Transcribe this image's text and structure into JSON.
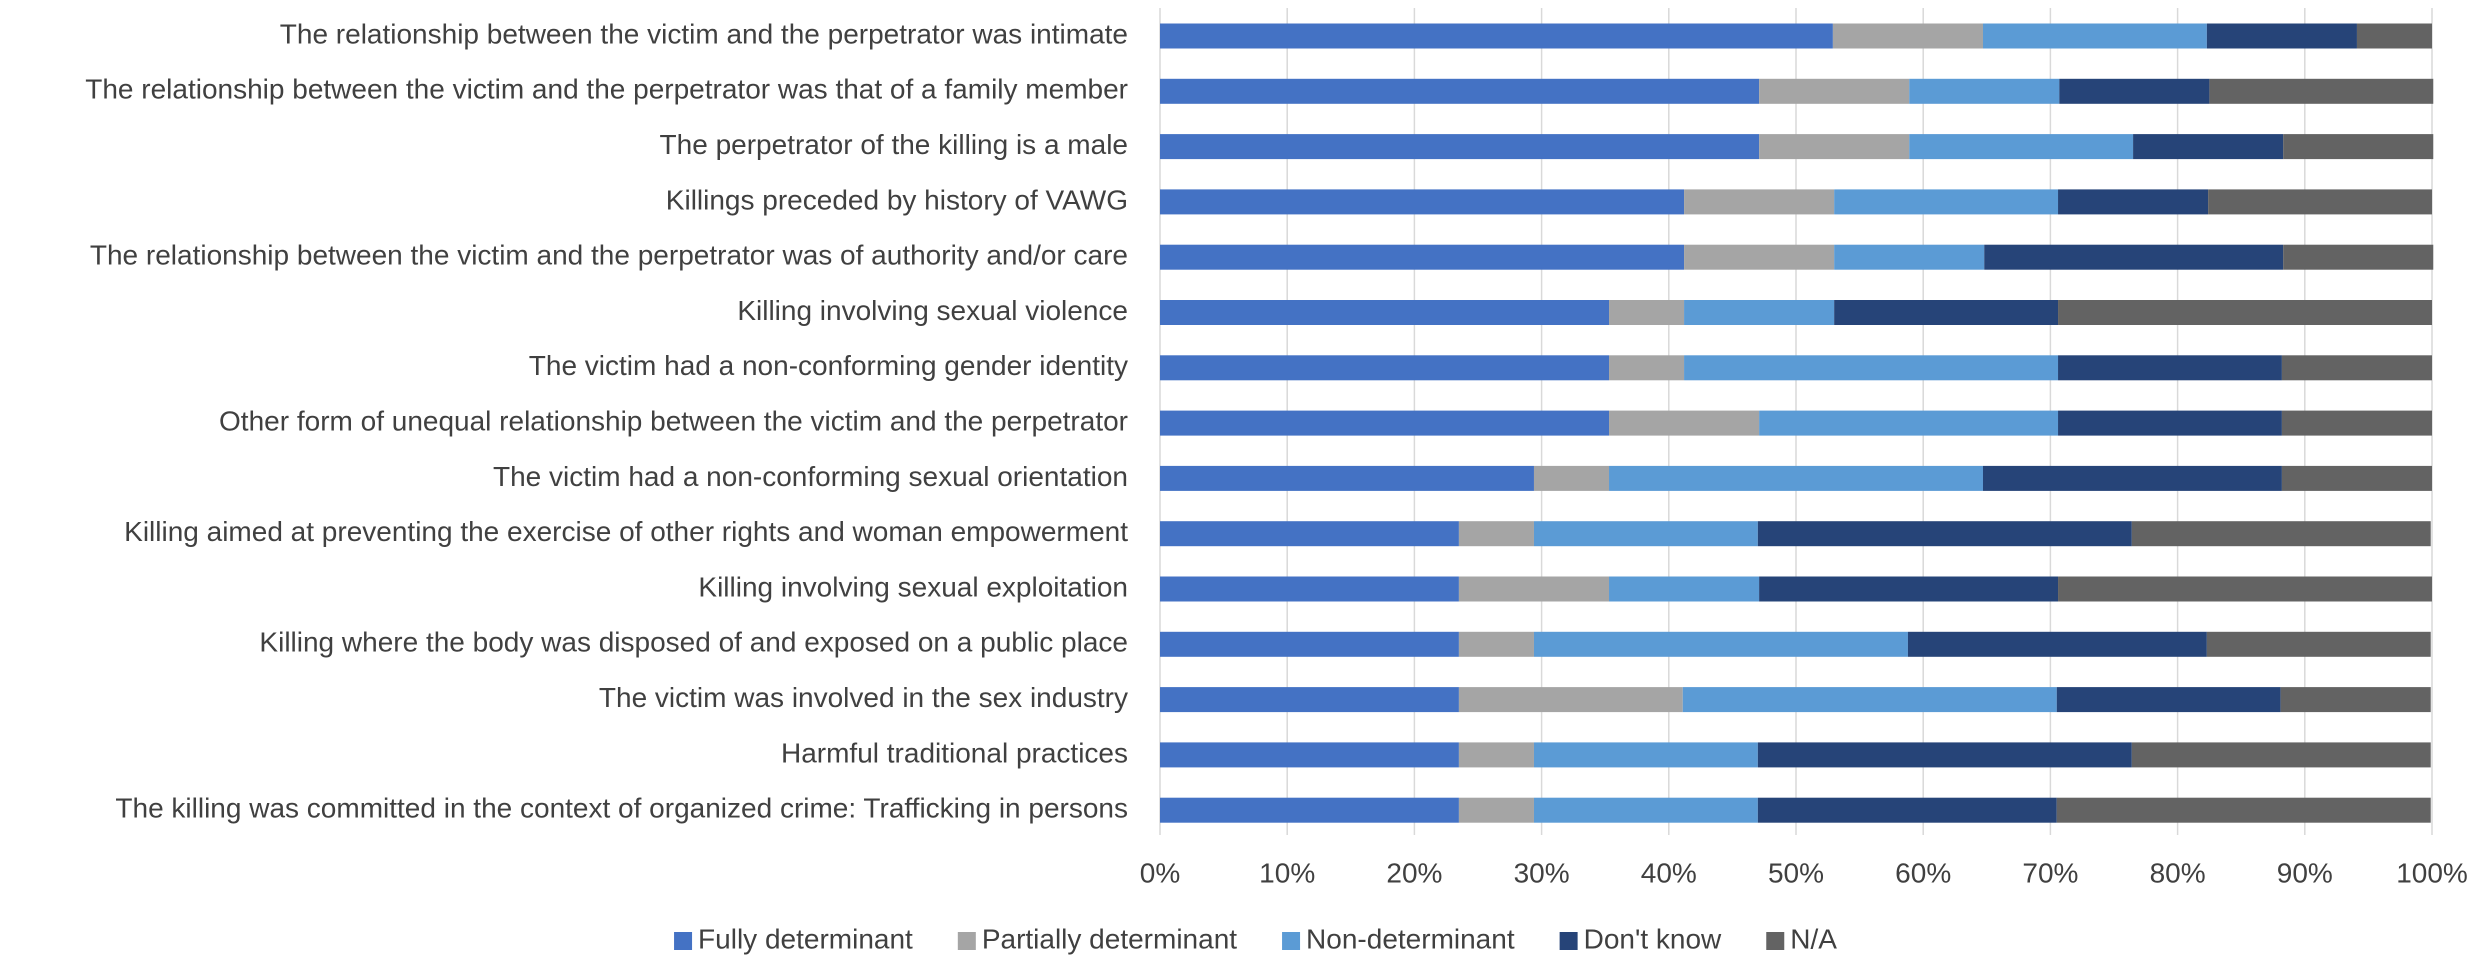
{
  "chart_data": {
    "type": "stacked_bar_horizontal",
    "categories": [
      "The relationship between the victim and the perpetrator was intimate",
      "The relationship between the victim and the perpetrator was that of a family member",
      "The perpetrator of the killing is a male",
      "Killings preceded by history of VAWG",
      "The relationship between the victim and the perpetrator was of authority and/or care",
      "Killing involving sexual violence",
      "The victim had a non-conforming gender identity",
      "Other form of unequal relationship between the victim and the perpetrator",
      "The victim had a non-conforming sexual orientation",
      "Killing aimed at preventing the exercise of other rights and woman empowerment",
      "Killing involving sexual exploitation",
      "Killing where the body was disposed of and exposed on a public place",
      "The victim was involved in the sex industry",
      "Harmful traditional practices",
      "The killing was committed in the context of organized crime: Trafficking in persons"
    ],
    "series": [
      {
        "name": "Fully determinant",
        "color": "#4472c4",
        "values": [
          52.9,
          47.1,
          47.1,
          41.2,
          41.2,
          35.3,
          35.3,
          35.3,
          29.4,
          23.5,
          23.5,
          23.5,
          23.5,
          23.5,
          23.5
        ]
      },
      {
        "name": "Partially determinant",
        "color": "#a5a5a5",
        "values": [
          11.8,
          11.8,
          11.8,
          11.8,
          11.8,
          5.9,
          5.9,
          11.8,
          5.9,
          5.9,
          11.8,
          5.9,
          17.6,
          5.9,
          5.9
        ]
      },
      {
        "name": "Non-determinant",
        "color": "#5b9bd5",
        "values": [
          17.6,
          11.8,
          17.6,
          17.6,
          11.8,
          11.8,
          29.4,
          23.5,
          29.4,
          17.6,
          11.8,
          29.4,
          29.4,
          17.6,
          17.6
        ]
      },
      {
        "name": "Don't know",
        "color": "#264478",
        "values": [
          11.8,
          11.8,
          11.8,
          11.8,
          23.5,
          17.6,
          17.6,
          17.6,
          23.5,
          29.4,
          23.5,
          23.5,
          17.6,
          29.4,
          23.5
        ]
      },
      {
        "name": "N/A",
        "color": "#636363",
        "values": [
          5.9,
          17.6,
          11.8,
          17.6,
          11.8,
          29.4,
          11.8,
          11.8,
          11.8,
          23.5,
          29.4,
          17.6,
          11.8,
          23.5,
          29.4
        ]
      }
    ],
    "xlim": [
      0,
      100
    ],
    "xticks": [
      {
        "value": 0,
        "label": "0%"
      },
      {
        "value": 10,
        "label": "10%"
      },
      {
        "value": 20,
        "label": "20%"
      },
      {
        "value": 30,
        "label": "30%"
      },
      {
        "value": 40,
        "label": "40%"
      },
      {
        "value": 50,
        "label": "50%"
      },
      {
        "value": 60,
        "label": "60%"
      },
      {
        "value": 70,
        "label": "70%"
      },
      {
        "value": 80,
        "label": "80%"
      },
      {
        "value": 90,
        "label": "90%"
      },
      {
        "value": 100,
        "label": "100%"
      }
    ],
    "grid": true,
    "legend": "bottom"
  }
}
